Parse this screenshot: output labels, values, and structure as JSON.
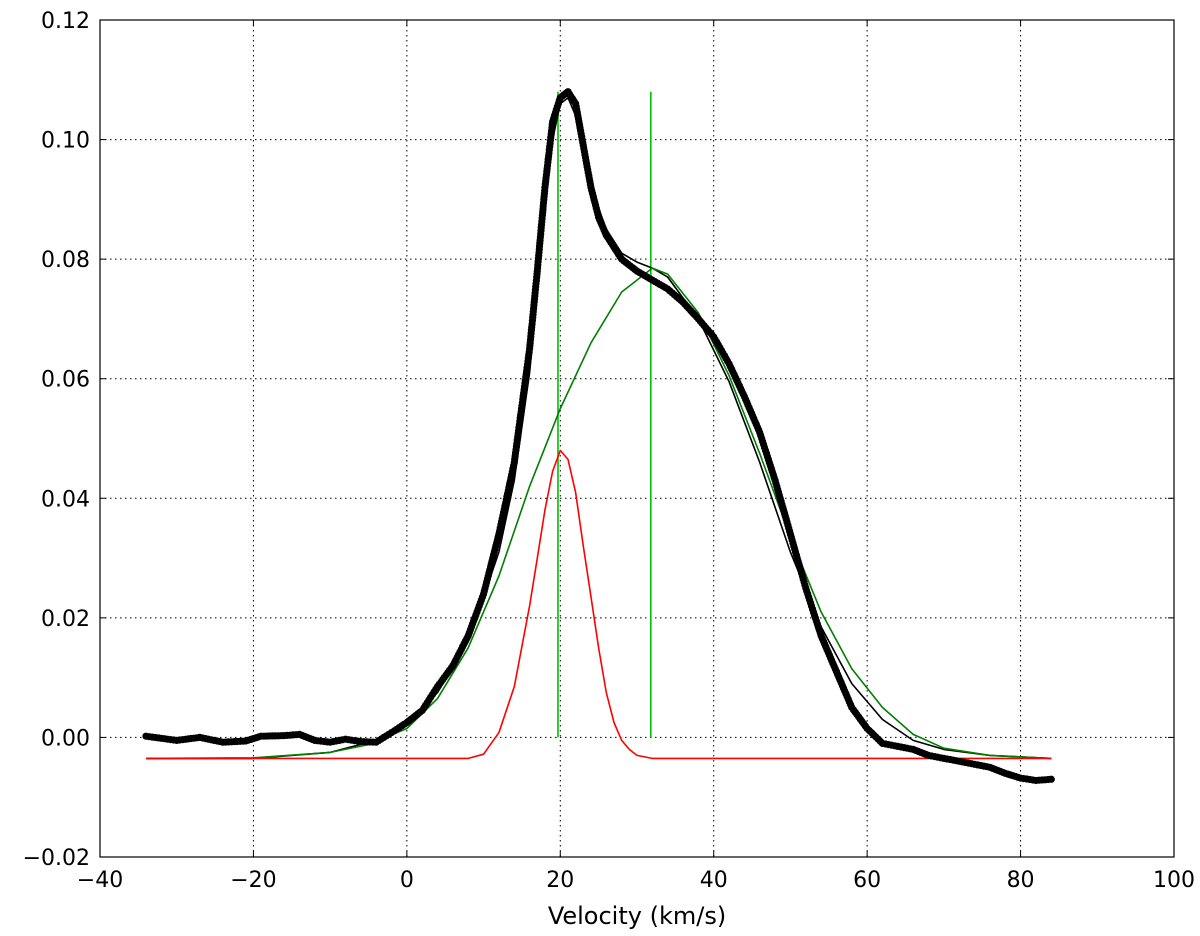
{
  "chart_data": {
    "type": "line",
    "title": "",
    "xlabel": "Velocity (km/s)",
    "ylabel": "",
    "xlim": [
      -40,
      100
    ],
    "ylim": [
      -0.02,
      0.12
    ],
    "x_ticks": [
      -40,
      -20,
      0,
      20,
      40,
      60,
      80,
      100
    ],
    "x_tick_labels": [
      "−40",
      "−20",
      "0",
      "20",
      "40",
      "60",
      "80",
      "100"
    ],
    "y_ticks": [
      -0.02,
      0.0,
      0.02,
      0.04,
      0.06,
      0.08,
      0.1,
      0.12
    ],
    "y_tick_labels": [
      "−0.02",
      "0.00",
      "0.02",
      "0.04",
      "0.06",
      "0.08",
      "0.10",
      "0.12"
    ],
    "grid": true,
    "grid_style": "dotted",
    "legend": "none",
    "colors": {
      "observed": "#000000",
      "total_fit": "#000000",
      "broad_component": "#007f00",
      "narrow_component": "#ff0000",
      "marker_lines": "#00bf00"
    },
    "series": [
      {
        "style": "points",
        "color": "#000000",
        "points": [
          [
            -34,
            0.0002
          ],
          [
            -30,
            -0.0005
          ],
          [
            -27,
            0.0
          ],
          [
            -24,
            -0.0008
          ],
          [
            -21,
            -0.0006
          ],
          [
            -19,
            0.0002
          ],
          [
            -16,
            0.0003
          ],
          [
            -14,
            0.0005
          ],
          [
            -12,
            -0.0005
          ],
          [
            -10,
            -0.0008
          ],
          [
            -8,
            -0.0003
          ],
          [
            -6,
            -0.0007
          ],
          [
            -4,
            -0.0008
          ],
          [
            -2,
            0.0008
          ],
          [
            0,
            0.0025
          ],
          [
            2,
            0.0045
          ],
          [
            4,
            0.0085
          ],
          [
            6,
            0.012
          ],
          [
            8,
            0.017
          ],
          [
            10,
            0.024
          ],
          [
            12,
            0.034
          ],
          [
            14,
            0.046
          ],
          [
            16,
            0.065
          ],
          [
            17,
            0.078
          ],
          [
            18,
            0.092
          ],
          [
            19,
            0.103
          ],
          [
            20,
            0.107
          ],
          [
            21,
            0.108
          ],
          [
            22,
            0.106
          ],
          [
            23,
            0.099
          ],
          [
            24,
            0.092
          ],
          [
            25,
            0.087
          ],
          [
            26,
            0.084
          ],
          [
            27,
            0.082
          ],
          [
            28,
            0.08
          ],
          [
            30,
            0.078
          ],
          [
            32,
            0.0765
          ],
          [
            34,
            0.075
          ],
          [
            36,
            0.0728
          ],
          [
            38,
            0.07
          ],
          [
            40,
            0.067
          ],
          [
            42,
            0.0625
          ],
          [
            44,
            0.057
          ],
          [
            46,
            0.051
          ],
          [
            48,
            0.043
          ],
          [
            50,
            0.034
          ],
          [
            52,
            0.025
          ],
          [
            54,
            0.017
          ],
          [
            56,
            0.011
          ],
          [
            58,
            0.005
          ],
          [
            60,
            0.0015
          ],
          [
            62,
            -0.001
          ],
          [
            64,
            -0.0015
          ],
          [
            66,
            -0.002
          ],
          [
            68,
            -0.003
          ],
          [
            70,
            -0.0035
          ],
          [
            72,
            -0.004
          ],
          [
            74,
            -0.0045
          ],
          [
            76,
            -0.005
          ],
          [
            78,
            -0.006
          ],
          [
            80,
            -0.0068
          ],
          [
            82,
            -0.0072
          ],
          [
            84,
            -0.007
          ]
        ]
      },
      {
        "style": "line",
        "color": "#000000",
        "points": [
          [
            -34,
            -0.0035
          ],
          [
            -20,
            -0.0035
          ],
          [
            -10,
            -0.0025
          ],
          [
            -4,
            -0.0005
          ],
          [
            0,
            0.002
          ],
          [
            4,
            0.0075
          ],
          [
            8,
            0.016
          ],
          [
            12,
            0.031
          ],
          [
            14,
            0.043
          ],
          [
            16,
            0.061
          ],
          [
            18,
            0.088
          ],
          [
            19,
            0.1
          ],
          [
            20,
            0.106
          ],
          [
            21,
            0.107
          ],
          [
            22,
            0.104
          ],
          [
            23,
            0.098
          ],
          [
            24,
            0.092
          ],
          [
            26,
            0.085
          ],
          [
            28,
            0.081
          ],
          [
            30,
            0.0795
          ],
          [
            32,
            0.0785
          ],
          [
            34,
            0.077
          ],
          [
            38,
            0.07
          ],
          [
            42,
            0.0595
          ],
          [
            46,
            0.046
          ],
          [
            50,
            0.031
          ],
          [
            54,
            0.0185
          ],
          [
            58,
            0.009
          ],
          [
            62,
            0.003
          ],
          [
            66,
            -0.0005
          ],
          [
            70,
            -0.002
          ],
          [
            76,
            -0.003
          ],
          [
            84,
            -0.0035
          ]
        ]
      },
      {
        "style": "line",
        "color": "#007f00",
        "points": [
          [
            -34,
            -0.0035
          ],
          [
            -20,
            -0.0034
          ],
          [
            -10,
            -0.0025
          ],
          [
            -5,
            -0.0012
          ],
          [
            0,
            0.0015
          ],
          [
            4,
            0.0065
          ],
          [
            8,
            0.015
          ],
          [
            12,
            0.027
          ],
          [
            16,
            0.042
          ],
          [
            20,
            0.055
          ],
          [
            24,
            0.066
          ],
          [
            28,
            0.0745
          ],
          [
            32,
            0.0785
          ],
          [
            34,
            0.0775
          ],
          [
            38,
            0.071
          ],
          [
            42,
            0.0605
          ],
          [
            46,
            0.0475
          ],
          [
            50,
            0.0335
          ],
          [
            54,
            0.021
          ],
          [
            58,
            0.0115
          ],
          [
            62,
            0.005
          ],
          [
            66,
            0.0005
          ],
          [
            70,
            -0.0018
          ],
          [
            76,
            -0.003
          ],
          [
            84,
            -0.0035
          ]
        ]
      },
      {
        "style": "line",
        "color": "#ff0000",
        "points": [
          [
            -34,
            -0.0035
          ],
          [
            8,
            -0.0035
          ],
          [
            10,
            -0.0028
          ],
          [
            12,
            0.0008
          ],
          [
            14,
            0.0085
          ],
          [
            16,
            0.022
          ],
          [
            17,
            0.03
          ],
          [
            18,
            0.038
          ],
          [
            19,
            0.0445
          ],
          [
            20,
            0.048
          ],
          [
            21,
            0.0465
          ],
          [
            22,
            0.041
          ],
          [
            23,
            0.032
          ],
          [
            24,
            0.0235
          ],
          [
            25,
            0.015
          ],
          [
            26,
            0.0075
          ],
          [
            27,
            0.0025
          ],
          [
            28,
            -0.0005
          ],
          [
            29,
            -0.002
          ],
          [
            30,
            -0.003
          ],
          [
            32,
            -0.0035
          ],
          [
            84,
            -0.0035
          ]
        ]
      }
    ],
    "vertical_markers": [
      {
        "x": 19.7,
        "y_from": 0.0,
        "y_to": 0.108
      },
      {
        "x": 31.8,
        "y_from": 0.0,
        "y_to": 0.108
      }
    ]
  }
}
